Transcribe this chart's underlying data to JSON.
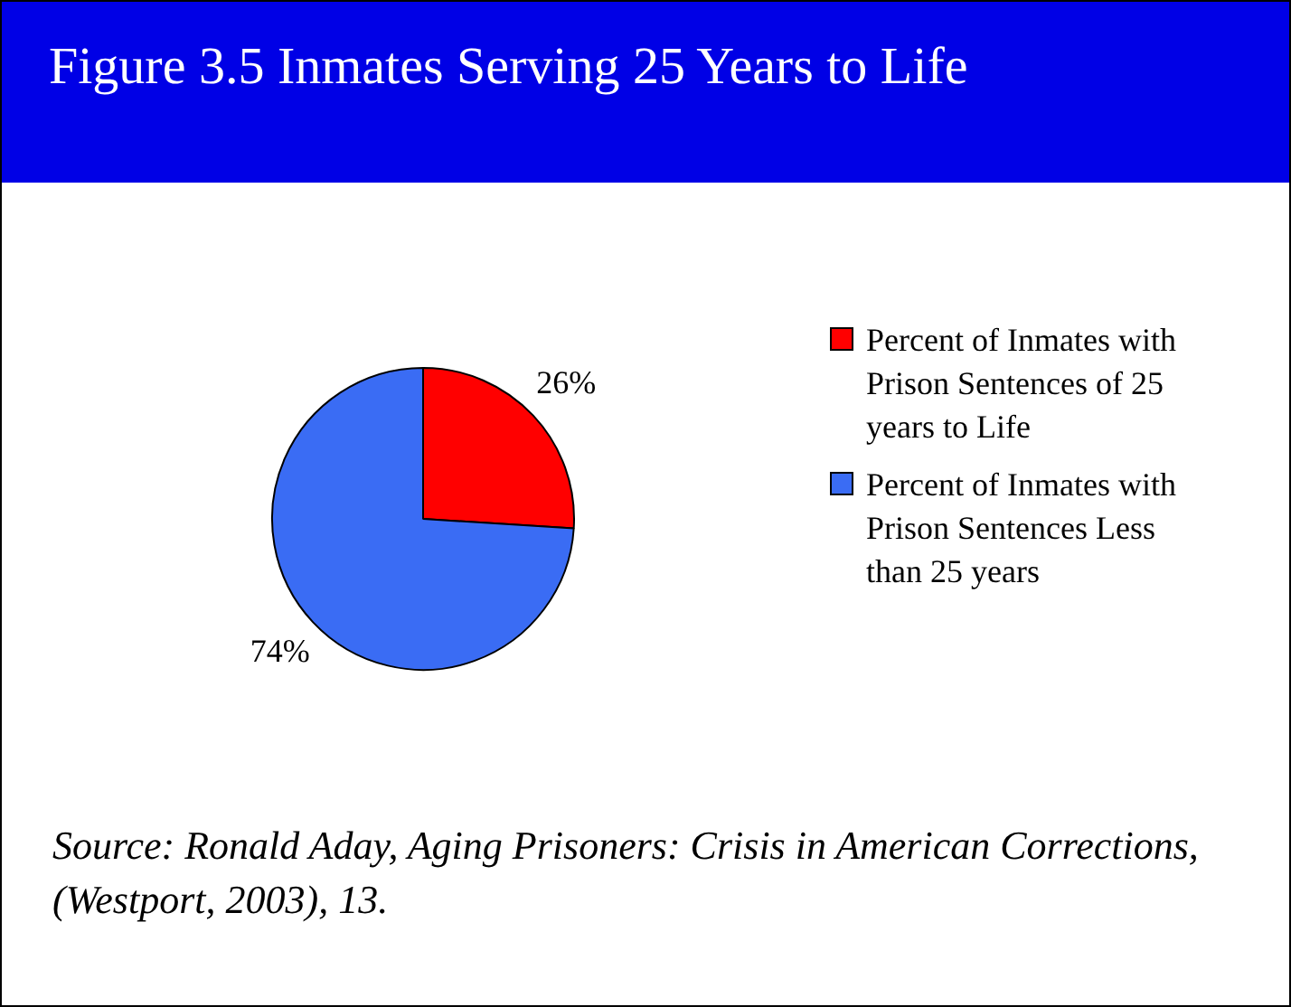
{
  "chart_data": {
    "type": "pie",
    "title": "Figure 3.5 Inmates Serving 25 Years to Life",
    "categories": [
      "Percent of Inmates with Prison Sentences of 25 years to Life",
      "Percent of Inmates with Prison Sentences Less than 25 years"
    ],
    "values": [
      26,
      74
    ],
    "colors": [
      "#ff0000",
      "#3a6cf4"
    ],
    "value_labels": [
      "26%",
      "74%"
    ],
    "legend": "right",
    "annotations": [
      "Source: Ronald Aday, Aging Prisoners: Crisis in American Corrections, (Westport, 2003), 13."
    ]
  }
}
